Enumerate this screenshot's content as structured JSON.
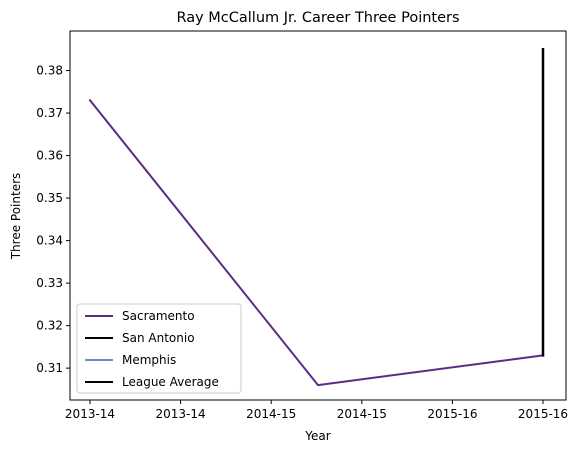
{
  "chart_data": {
    "type": "line",
    "title": "Ray McCallum Jr. Career Three Pointers",
    "xlabel": "Year",
    "ylabel": "Three Pointers",
    "x_tick_labels": [
      "2013-14",
      "2013-14",
      "2014-15",
      "2014-15",
      "2015-16",
      "2015-16"
    ],
    "ylim": [
      0.3025,
      0.3893
    ],
    "y_ticks": [
      0.31,
      0.32,
      0.33,
      0.34,
      0.35,
      0.36,
      0.37,
      0.38
    ],
    "grid": false,
    "legend_position": "lower-left",
    "series": [
      {
        "name": "Sacramento",
        "color": "#5b2d82",
        "points": [
          {
            "x": "2013-14",
            "y": 0.373
          },
          {
            "x": "2014-15",
            "y": 0.306
          },
          {
            "x": "2015-16",
            "y": 0.313
          }
        ]
      },
      {
        "name": "San Antonio",
        "color": "#000000",
        "points": [
          {
            "x": "2015-16",
            "y": 0.313
          },
          {
            "x": "2015-16",
            "y": 0.385
          }
        ]
      },
      {
        "name": "Memphis",
        "color": "#6a8fbf",
        "points": []
      },
      {
        "name": "League Average",
        "color": "#000000",
        "points": []
      }
    ]
  }
}
